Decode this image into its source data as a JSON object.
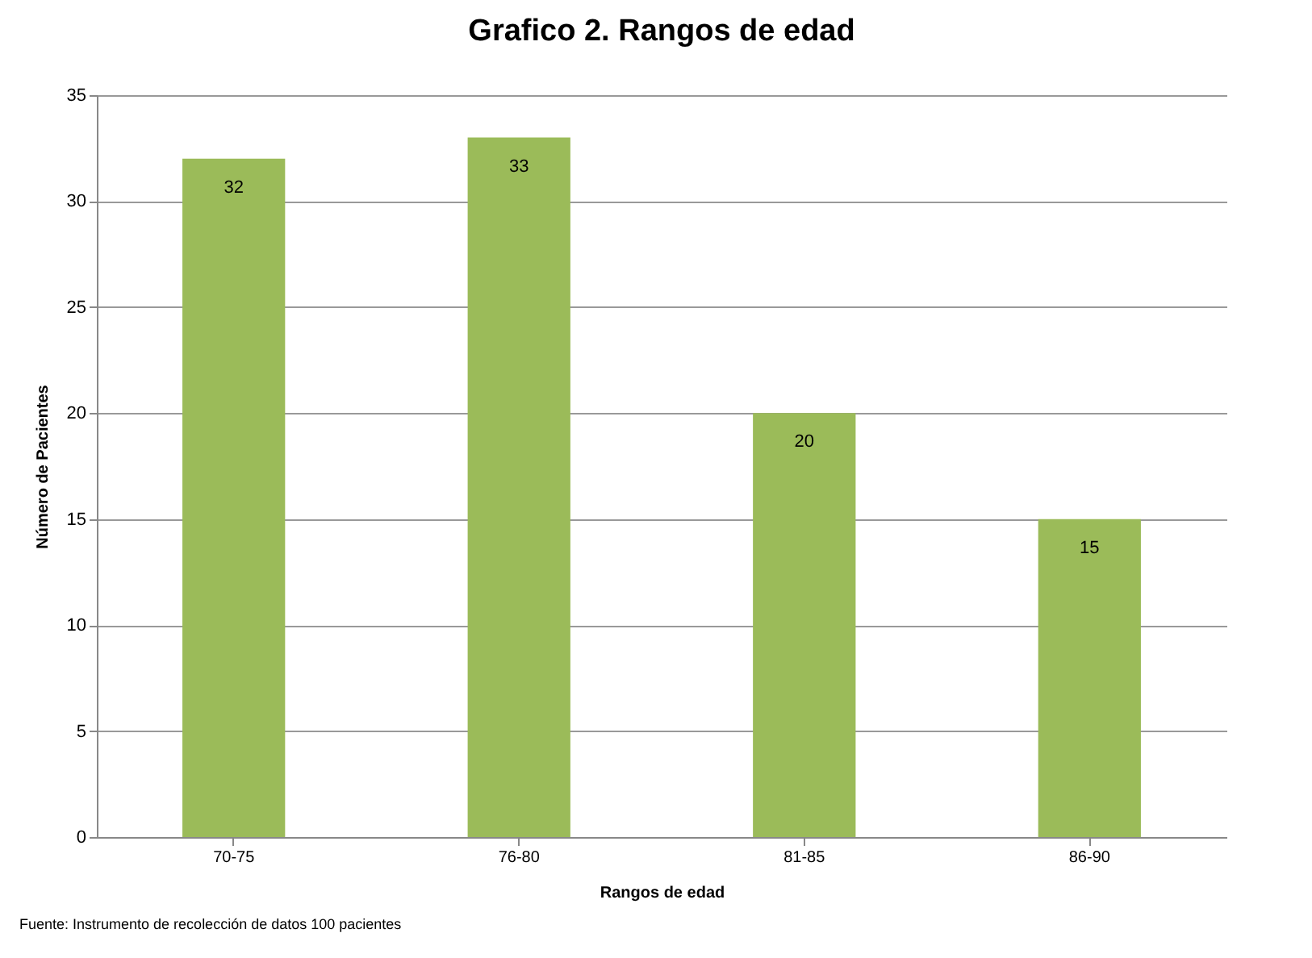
{
  "chart_data": {
    "type": "bar",
    "title": "Grafico 2. Rangos de edad",
    "xlabel": "Rangos de edad",
    "ylabel": "Número de Pacientes",
    "categories": [
      "70-75",
      "76-80",
      "81-85",
      "86-90"
    ],
    "values": [
      32,
      33,
      20,
      15
    ],
    "color": "#9bbb59",
    "ylim": [
      0,
      35
    ],
    "yticks": [
      0,
      5,
      10,
      15,
      20,
      25,
      30,
      35
    ],
    "grid": "y",
    "data_labels": true,
    "annotations": [
      "Fuente: Instrumento de recolección de datos 100 pacientes"
    ]
  }
}
